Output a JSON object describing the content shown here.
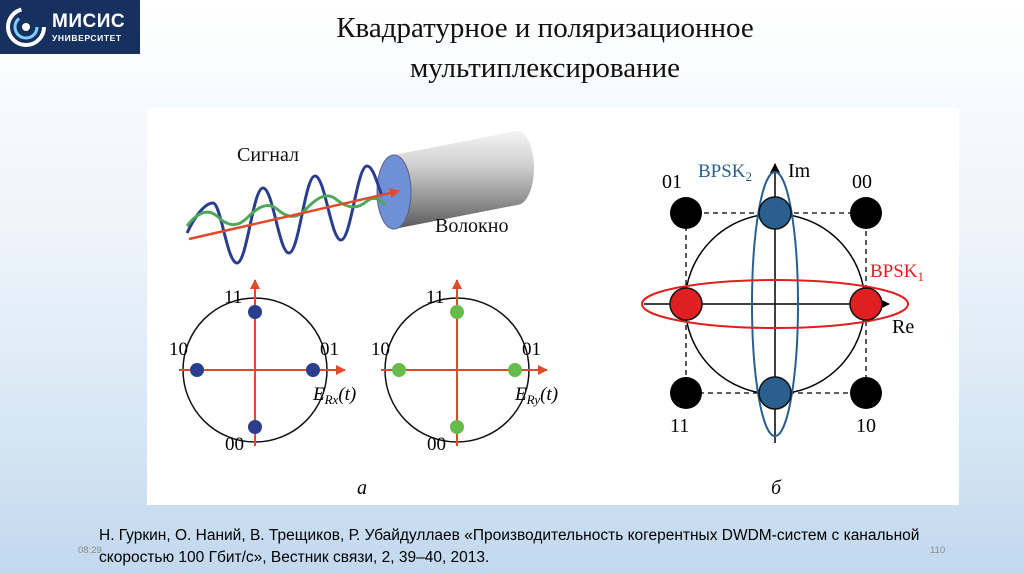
{
  "header": {
    "logo": {
      "name": "МИСИС",
      "sub": "УНИВЕРСИТЕТ"
    },
    "title_line1": "Квадратурное и поляризационное",
    "title_line2": "мультиплексирование"
  },
  "figure": {
    "panel_a": {
      "signal_label": "Сигнал",
      "fiber_label": "Волокно",
      "caption": "а",
      "left_constellation": {
        "top": "11",
        "left": "10",
        "right": "01",
        "bottom": "00",
        "axis_label": "E_Rx(t)",
        "point_color": "#2b3d8f"
      },
      "right_constellation": {
        "top": "11",
        "left": "10",
        "right": "01",
        "bottom": "00",
        "axis_label": "E_Ry(t)",
        "point_color": "#66bb4a"
      }
    },
    "panel_b": {
      "caption": "б",
      "corner_tl": "01",
      "corner_tr": "00",
      "corner_bl": "11",
      "corner_br": "10",
      "im_label": "Im",
      "re_label": "Re",
      "bpsk2_label": "BPSK",
      "bpsk2_sub": "2",
      "bpsk1_label": "BPSK",
      "bpsk1_sub": "1",
      "colors": {
        "bpsk2": "#2a5f8f",
        "bpsk1": "#e02020",
        "corner": "#000000"
      }
    }
  },
  "citation": {
    "line1": "Н. Гуркин, О. Наний, В. Трещиков, Р. Убайдуллаев «Производительность когерентных DWDM-систем с канальной",
    "line2": "скоростью 100 Гбит/с», Вестник связи, 2, 39–40, 2013."
  },
  "footer": {
    "time": "08:29",
    "page": "110"
  }
}
